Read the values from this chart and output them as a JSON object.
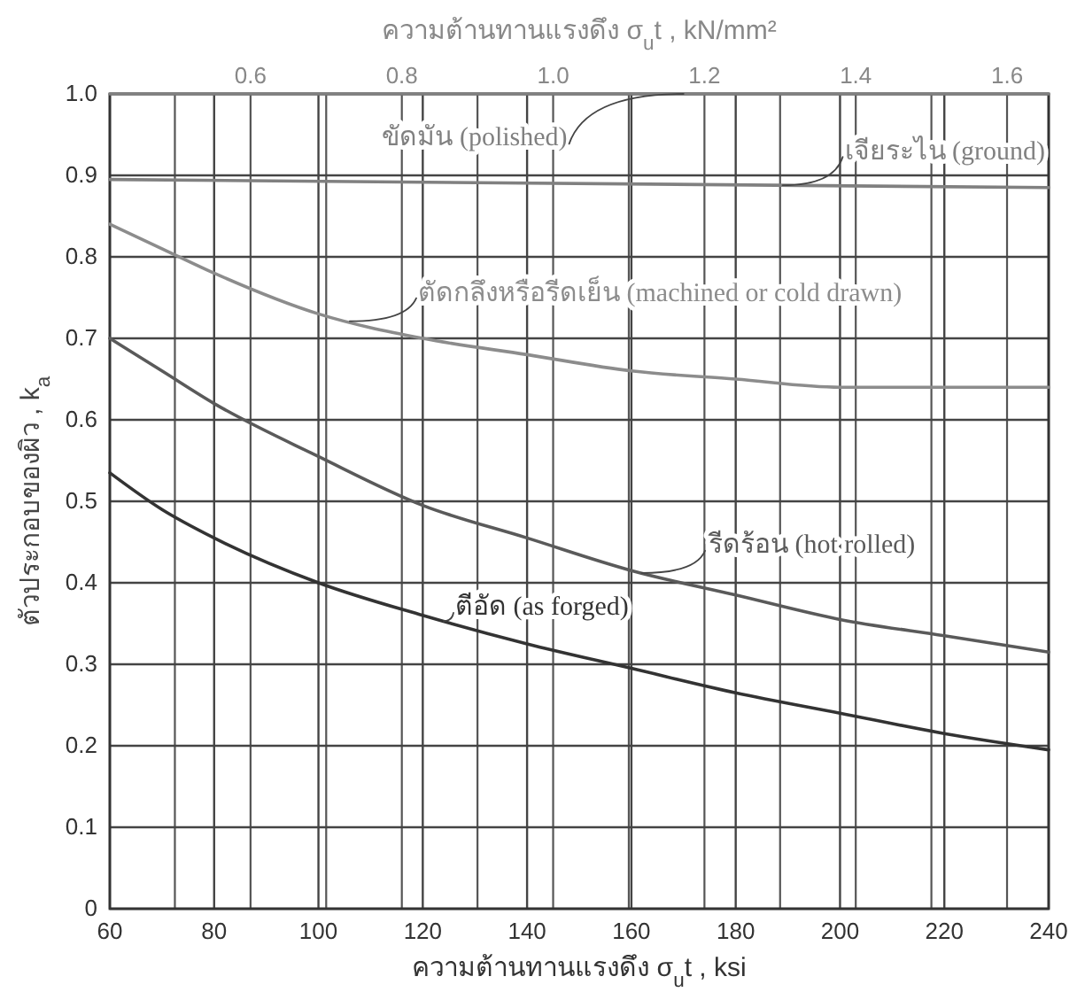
{
  "chart_data": {
    "type": "line",
    "xlabel": "ความต้านทานแรงดึง  σ$_{u}$t , ksi",
    "x2label": "ความต้านทานแรงดึง  σ$_{u}$t , kN/mm²",
    "ylabel": "ตัวประกอบของผิว , k$_{a}$",
    "xlim": [
      60,
      240
    ],
    "xticks": [
      60,
      80,
      100,
      120,
      140,
      160,
      180,
      200,
      220,
      240
    ],
    "x2lim": [
      0.414,
      1.655
    ],
    "x2ticks": [
      {
        "value": 0.5,
        "label": null
      },
      0.6,
      {
        "value": 0.7,
        "label": null
      },
      0.8,
      {
        "value": 0.9,
        "label": null
      },
      {
        "value": 1,
        "label": "1.0"
      },
      {
        "value": 1.1,
        "label": null
      },
      1.2,
      {
        "value": 1.3,
        "label": null
      },
      1.4,
      {
        "value": 1.5,
        "label": null
      },
      1.6
    ],
    "ylim": [
      0,
      1
    ],
    "yticks": [
      0,
      0.1,
      0.2,
      0.3,
      0.4,
      0.5,
      0.6,
      0.7,
      0.8,
      0.9,
      {
        "value": 1,
        "label": "1.0"
      }
    ],
    "grid": true,
    "series": [
      {
        "name": "ขัดมัน (polished)",
        "color": "#808080",
        "x": [
          60,
          240
        ],
        "values": [
          1,
          1
        ]
      },
      {
        "name": "เจียระไน (ground)",
        "color": "#808080",
        "x": [
          60,
          240
        ],
        "values": [
          0.895,
          0.885
        ]
      },
      {
        "name": "ตัดกลึงหรือรีดเย็น (machined or cold drawn)",
        "color": "#8c8c8c",
        "x": [
          60,
          70,
          80,
          100,
          120,
          140,
          160,
          180,
          200,
          220,
          240
        ],
        "values": [
          0.84,
          0.81,
          0.78,
          0.73,
          0.7,
          0.68,
          0.66,
          0.65,
          0.64,
          0.64,
          0.64
        ]
      },
      {
        "name": "รีดร้อน (hot rolled)",
        "color": "#5a5a5a",
        "x": [
          60,
          70,
          80,
          100,
          120,
          140,
          160,
          180,
          200,
          220,
          240
        ],
        "values": [
          0.7,
          0.66,
          0.62,
          0.555,
          0.495,
          0.455,
          0.415,
          0.385,
          0.355,
          0.335,
          0.315
        ]
      },
      {
        "name": "ตีอัด (as forged)",
        "color": "#333333",
        "x": [
          60,
          70,
          80,
          100,
          120,
          140,
          160,
          180,
          200,
          220,
          240
        ],
        "values": [
          0.535,
          0.49,
          0.455,
          0.4,
          0.36,
          0.325,
          0.295,
          0.265,
          0.24,
          0.215,
          0.195
        ]
      }
    ]
  }
}
